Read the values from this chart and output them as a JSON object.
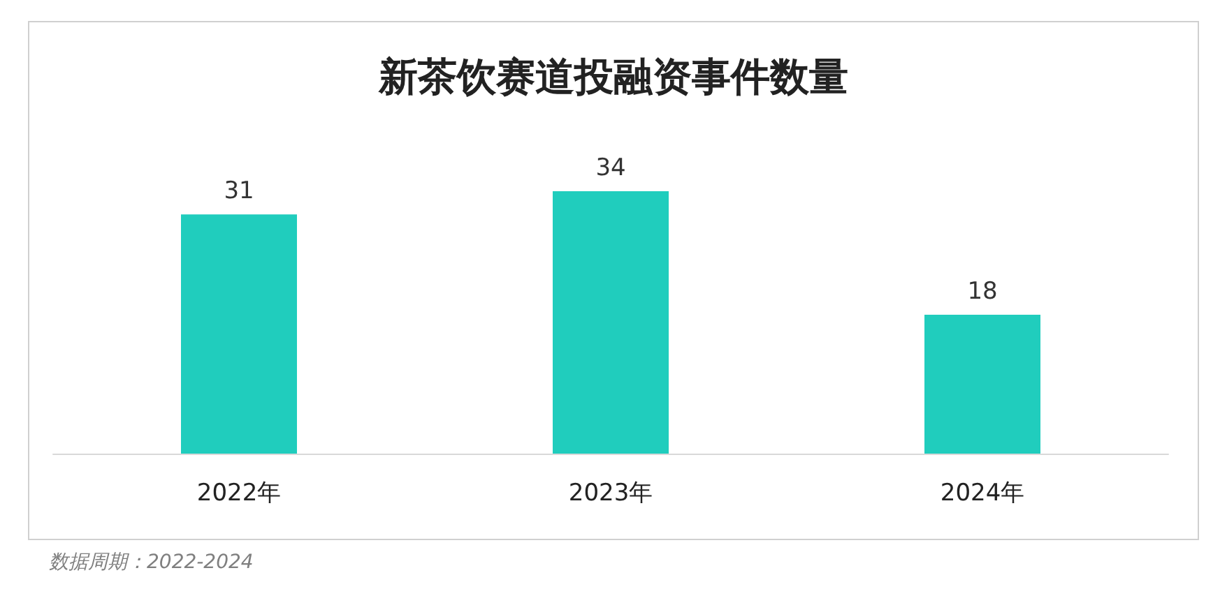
{
  "chart_data": {
    "type": "bar",
    "title": "新茶饮赛道投融资事件数量",
    "categories": [
      "2022年",
      "2023年",
      "2024年"
    ],
    "values": [
      31,
      34,
      18
    ],
    "color": "#20cdbd",
    "data_labels": true,
    "annotations": [
      "数据周期：2022-2024"
    ]
  }
}
